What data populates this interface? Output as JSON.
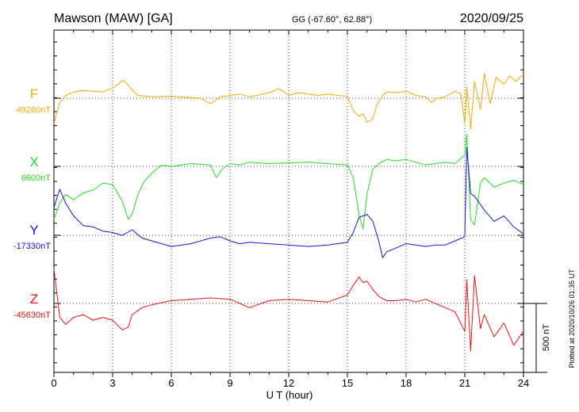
{
  "chart_data": {
    "type": "line",
    "title": "Mawson (MAW)  [GA]",
    "coords": "GG (-67.60°,  62.88°)",
    "date": "2020/09/25",
    "xlabel": "U T (hour)",
    "xlim": [
      0,
      24
    ],
    "x_ticks": [
      0,
      3,
      6,
      9,
      12,
      15,
      18,
      21,
      24
    ],
    "grid": "dotted vertical at ticks, dotted baseline per series",
    "scale_label": "500 nT",
    "scale_nT": 500,
    "plotted_note": "Plotted at 2020/10/26 01:35 UT",
    "series": [
      {
        "name": "F",
        "baseline": "49260nT",
        "color": "#f5a800",
        "hours": [
          0,
          0.3,
          0.6,
          1,
          1.5,
          2,
          2.5,
          3,
          3.3,
          3.5,
          3.7,
          4,
          4.3,
          5,
          6,
          7,
          7.5,
          8,
          8.2,
          8.5,
          9,
          9.5,
          10,
          10.5,
          11,
          11.5,
          12,
          12.5,
          13,
          13.5,
          14,
          14.5,
          15,
          15.3,
          15.6,
          15.8,
          16,
          16.3,
          16.5,
          16.8,
          17,
          17.5,
          18,
          18.5,
          19,
          19.3,
          19.6,
          20,
          20.5,
          20.8,
          21,
          21.1,
          21.3,
          21.5,
          21.8,
          22,
          22.3,
          22.6,
          23,
          23.3,
          23.6,
          24
        ],
        "values": [
          -180,
          -30,
          20,
          45,
          55,
          50,
          45,
          75,
          100,
          130,
          110,
          60,
          20,
          10,
          15,
          5,
          0,
          -40,
          -20,
          10,
          20,
          30,
          10,
          25,
          40,
          70,
          20,
          40,
          30,
          20,
          30,
          20,
          15,
          -90,
          -130,
          -110,
          -170,
          -150,
          -50,
          20,
          45,
          40,
          50,
          20,
          10,
          -30,
          0,
          10,
          50,
          30,
          -180,
          80,
          -220,
          120,
          -80,
          180,
          -40,
          150,
          100,
          160,
          120,
          170
        ]
      },
      {
        "name": "X",
        "baseline": "6600nT",
        "color": "#22dd22",
        "hours": [
          0,
          0.3,
          0.6,
          1,
          1.5,
          2,
          2.5,
          3,
          3.5,
          3.8,
          4,
          4.3,
          4.6,
          5,
          5.5,
          6,
          7,
          8,
          8.3,
          8.6,
          9,
          9.5,
          10,
          11,
          12,
          13,
          14,
          15,
          15.3,
          15.6,
          15.8,
          16,
          16.3,
          16.6,
          17,
          17.5,
          18,
          18.5,
          19,
          19.5,
          20,
          20.5,
          21,
          21.1,
          21.3,
          21.5,
          21.8,
          22,
          22.5,
          23,
          23.5,
          24
        ],
        "values": [
          -380,
          -260,
          -200,
          -240,
          -190,
          -170,
          -120,
          -130,
          -250,
          -380,
          -340,
          -200,
          -110,
          -50,
          10,
          0,
          20,
          10,
          -80,
          -20,
          20,
          10,
          30,
          20,
          25,
          30,
          20,
          10,
          -80,
          -350,
          -450,
          -200,
          -20,
          20,
          50,
          40,
          50,
          30,
          10,
          20,
          30,
          20,
          80,
          230,
          -380,
          -420,
          -120,
          -80,
          -150,
          -120,
          -100,
          -130
        ]
      },
      {
        "name": "Y",
        "baseline": "-17330nT",
        "color": "#1515d5",
        "hours": [
          0,
          0.3,
          0.6,
          1,
          1.5,
          2,
          2.5,
          3,
          3.5,
          4,
          4.5,
          5,
          6,
          7,
          8,
          8.5,
          9,
          9.5,
          10,
          11,
          12,
          13,
          14,
          15,
          15.3,
          15.6,
          16,
          16.3,
          16.6,
          16.8,
          17,
          17.5,
          18,
          18.5,
          19,
          19.5,
          20,
          20.5,
          21,
          21.1,
          21.3,
          21.5,
          22,
          22.5,
          23,
          23.5,
          24
        ],
        "values": [
          200,
          330,
          230,
          140,
          70,
          60,
          30,
          20,
          0,
          40,
          -20,
          -40,
          -80,
          -60,
          -20,
          -10,
          -40,
          -60,
          -50,
          -60,
          -70,
          -80,
          -70,
          -50,
          20,
          130,
          150,
          100,
          -40,
          -160,
          -120,
          -90,
          -60,
          -70,
          -80,
          -70,
          -70,
          -40,
          -10,
          630,
          300,
          280,
          180,
          100,
          140,
          60,
          10
        ]
      },
      {
        "name": "Z",
        "baseline": "-45630nT",
        "color": "#ee1111",
        "hours": [
          0,
          0.3,
          0.6,
          1,
          1.5,
          2,
          2.5,
          3,
          3.5,
          3.8,
          4,
          4.5,
          5,
          6,
          7,
          8,
          9,
          9.5,
          10,
          11,
          12,
          13,
          14,
          15,
          15.3,
          15.6,
          15.8,
          16,
          16.3,
          16.6,
          17,
          17.5,
          18,
          18.5,
          19,
          19.5,
          20,
          20.5,
          21,
          21.1,
          21.3,
          21.5,
          21.8,
          22,
          22.5,
          23,
          23.5,
          24
        ],
        "values": [
          250,
          -100,
          -150,
          -100,
          -80,
          -120,
          -100,
          -120,
          -190,
          -170,
          -80,
          -30,
          -10,
          20,
          30,
          40,
          30,
          0,
          -30,
          20,
          30,
          20,
          10,
          60,
          130,
          190,
          150,
          160,
          100,
          50,
          20,
          20,
          30,
          10,
          30,
          0,
          -30,
          -60,
          -200,
          170,
          -340,
          200,
          -180,
          -80,
          -240,
          -140,
          -300,
          -200
        ]
      }
    ]
  }
}
